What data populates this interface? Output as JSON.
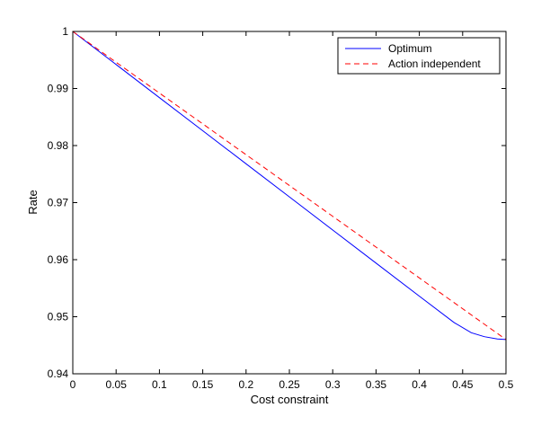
{
  "chart_data": {
    "type": "line",
    "title": "",
    "xlabel": "Cost constraint",
    "ylabel": "Rate",
    "xlim": [
      0,
      0.5
    ],
    "ylim": [
      0.94,
      1.0
    ],
    "x_ticks": [
      "0",
      "0.05",
      "0.1",
      "0.15",
      "0.2",
      "0.25",
      "0.3",
      "0.35",
      "0.4",
      "0.45",
      "0.5"
    ],
    "y_ticks": [
      "0.94",
      "0.95",
      "0.96",
      "0.97",
      "0.98",
      "0.99",
      "1"
    ],
    "grid": false,
    "legend_position": "top-right",
    "series": [
      {
        "name": "Optimum",
        "color": "#0000ff",
        "style": "solid",
        "x": [
          0,
          0.05,
          0.1,
          0.15,
          0.2,
          0.25,
          0.3,
          0.35,
          0.4,
          0.44,
          0.46,
          0.475,
          0.49,
          0.5
        ],
        "y": [
          1.0,
          0.9942,
          0.9884,
          0.9826,
          0.9768,
          0.971,
          0.9652,
          0.9594,
          0.9536,
          0.949,
          0.9472,
          0.9465,
          0.9461,
          0.946
        ]
      },
      {
        "name": "Action independent",
        "color": "#ff0000",
        "style": "dashed",
        "x": [
          0,
          0.5
        ],
        "y": [
          1.0,
          0.946
        ]
      }
    ]
  }
}
